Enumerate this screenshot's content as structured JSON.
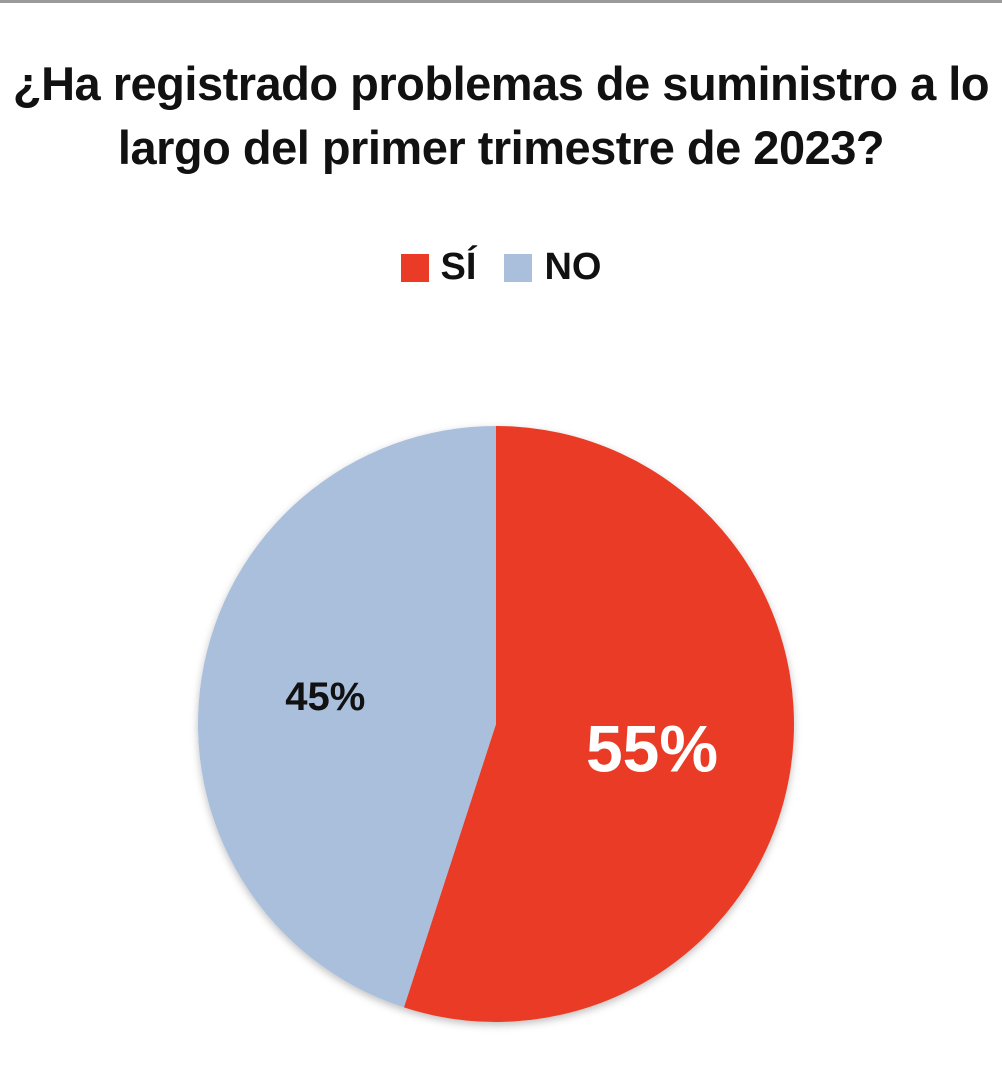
{
  "chart_data": {
    "type": "pie",
    "title": "¿Ha registrado problemas de suministro a lo largo del primer trimestre de 2023?",
    "legend_position": "top",
    "slices": [
      {
        "label": "SÍ",
        "value": 55,
        "display": "55%",
        "color": "#e93b25",
        "label_color": "#ffffff"
      },
      {
        "label": "NO",
        "value": 45,
        "display": "45%",
        "color": "#a9bfdc",
        "label_color": "#111111"
      }
    ]
  }
}
